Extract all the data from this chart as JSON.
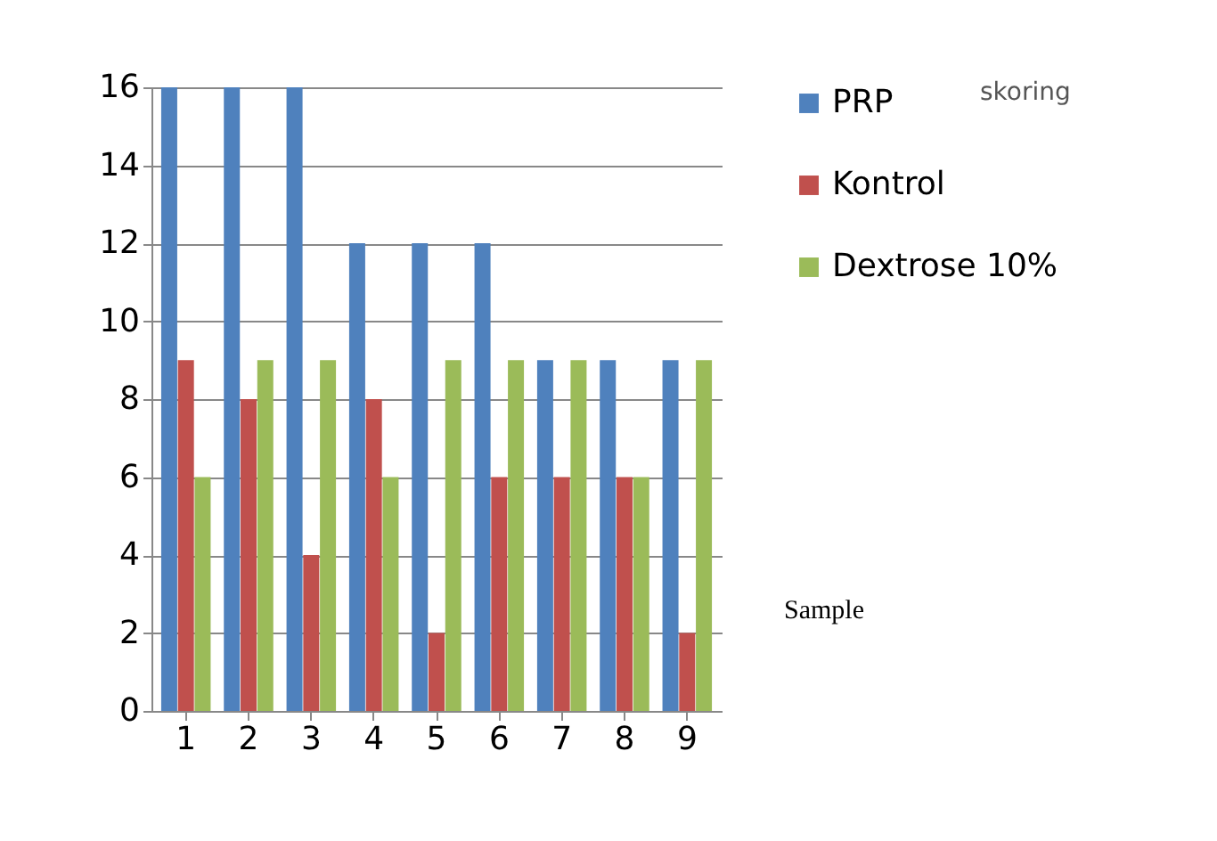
{
  "chart_data": {
    "type": "bar",
    "title": "skoring",
    "annotations": [
      "Sample"
    ],
    "categories": [
      "1",
      "2",
      "3",
      "4",
      "5",
      "6",
      "7",
      "8",
      "9"
    ],
    "series": [
      {
        "name": "PRP",
        "color": "#4f81bd",
        "values": [
          16,
          16,
          16,
          12,
          12,
          12,
          9,
          9,
          9
        ]
      },
      {
        "name": "Kontrol",
        "color": "#c0504d",
        "values": [
          9,
          8,
          4,
          8,
          2,
          6,
          6,
          6,
          2
        ]
      },
      {
        "name": "Dextrose 10%",
        "color": "#9bbb59",
        "values": [
          6,
          9,
          9,
          6,
          9,
          9,
          9,
          6,
          9
        ]
      }
    ],
    "ylim": [
      0,
      16
    ],
    "yticks": [
      0,
      2,
      4,
      6,
      8,
      10,
      12,
      14,
      16
    ],
    "grid": "y",
    "legend": "right"
  }
}
